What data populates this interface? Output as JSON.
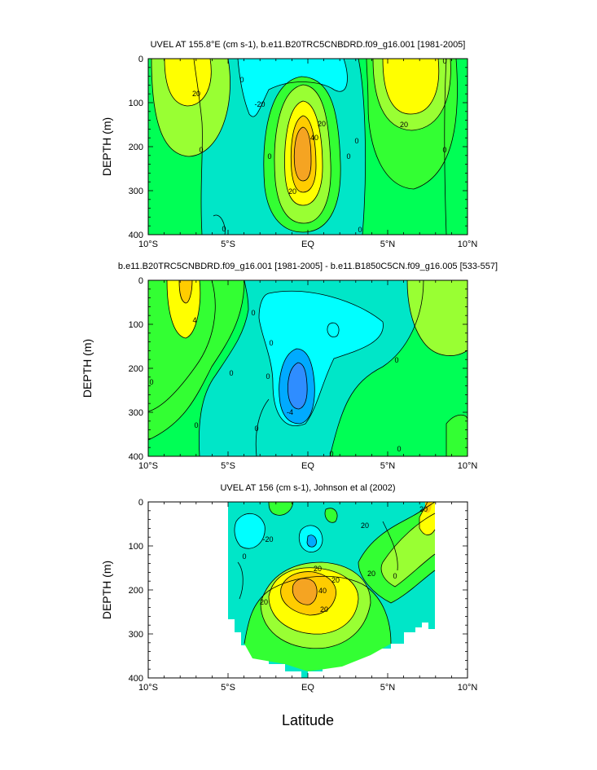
{
  "chart_data": [
    {
      "type": "contour",
      "title": "UVEL AT 155.8°E (cm s-1), b.e11.B20TRC5CNBDRD.f09_g16.001 [1981-2005]",
      "ylabel": "DEPTH (m)",
      "xlabel": "",
      "x_ticklabels": [
        "10°S",
        "5°S",
        "EQ",
        "5°N",
        "10°N"
      ],
      "y_ticklabels": [
        "0",
        "100",
        "200",
        "300",
        "400"
      ],
      "xlim": [
        -10,
        10
      ],
      "ylim": [
        0,
        400
      ],
      "contour_labels": [
        "20",
        "0",
        "-20",
        "20",
        "40",
        "20",
        "0",
        "0",
        "20",
        "0",
        "0",
        "0",
        "0",
        "0",
        "0"
      ],
      "features": [
        {
          "name": "southern-westward-core",
          "lat": -7.5,
          "depth": 70,
          "peak": 30
        },
        {
          "name": "equatorial-undercurrent",
          "lat": -0.3,
          "depth": 210,
          "peak": 50
        },
        {
          "name": "northern-eastward-core",
          "lat": 6,
          "depth": 70,
          "peak": 30
        }
      ]
    },
    {
      "type": "contour",
      "title": "b.e11.B20TRC5CNBDRD.f09_g16.001 [1981-2005] - b.e11.B1850C5CN.f09_g16.005 [533-557]",
      "ylabel": "DEPTH (m)",
      "xlabel": "",
      "x_ticklabels": [
        "10°S",
        "5°S",
        "EQ",
        "5°N",
        "10°N"
      ],
      "y_ticklabels": [
        "0",
        "100",
        "200",
        "300",
        "400"
      ],
      "xlim": [
        -10,
        10
      ],
      "ylim": [
        0,
        400
      ],
      "contour_labels": [
        "4",
        "0",
        "0",
        "0",
        "0",
        "0",
        "0",
        "-4",
        "0",
        "0",
        "0",
        "0"
      ],
      "features": [
        {
          "name": "positive-anomaly",
          "lat": -8,
          "depth": 70,
          "peak": 6
        },
        {
          "name": "negative-anomaly",
          "lat": -0.6,
          "depth": 240,
          "peak": -9
        }
      ]
    },
    {
      "type": "contour",
      "title": "UVEL AT 156 (cm s-1), Johnson et al (2002)",
      "ylabel": "DEPTH (m)",
      "xlabel": "Latitude",
      "x_ticklabels": [
        "10°S",
        "5°S",
        "EQ",
        "5°N",
        "10°N"
      ],
      "y_ticklabels": [
        "0",
        "100",
        "200",
        "300",
        "400"
      ],
      "xlim": [
        -10,
        10
      ],
      "ylim": [
        0,
        400
      ],
      "data_extent_lat": [
        -5,
        8
      ],
      "contour_labels": [
        "-20",
        "20",
        "20",
        "20",
        "40",
        "20",
        "20",
        "20",
        "0",
        "0",
        "20"
      ],
      "features": [
        {
          "name": "equatorial-undercurrent",
          "lat": -0.2,
          "depth": 200,
          "peak": 50
        }
      ]
    }
  ]
}
